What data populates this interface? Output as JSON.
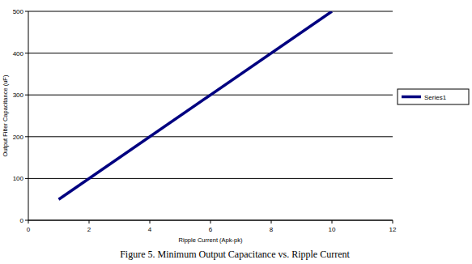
{
  "chart_data": {
    "type": "line",
    "title": "Figure 5. Minimum Output Capacitance vs. Ripple Current",
    "x_label": "Ripple Current (Apk-pk)",
    "y_label": "Output Filter Capacitance (uF)",
    "x": [
      1,
      10
    ],
    "series": [
      {
        "name": "Series1",
        "color": "#000080",
        "values": [
          50,
          500
        ]
      }
    ],
    "xlim": [
      0,
      12
    ],
    "xticks": [
      0,
      2,
      4,
      6,
      8,
      10,
      12
    ],
    "ylim": [
      0,
      500
    ],
    "yticks": [
      0,
      100,
      200,
      300,
      400,
      500
    ],
    "grid": true,
    "legend": "right"
  }
}
